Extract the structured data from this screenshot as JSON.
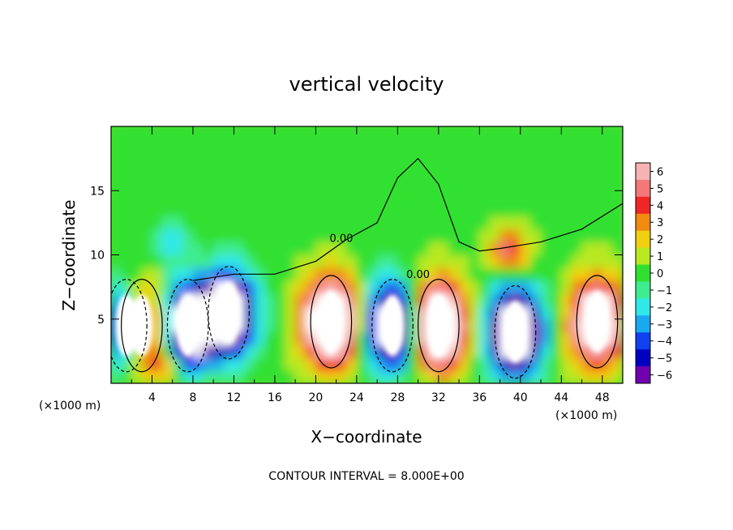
{
  "chart_data": {
    "type": "heatmap",
    "title": "vertical velocity",
    "xlabel": "X−coordinate",
    "ylabel": "Z−coordinate",
    "x_unit_left": "(×1000 m)",
    "x_unit_right": "(×1000 m)",
    "xlim": [
      0,
      50
    ],
    "ylim": [
      0,
      20
    ],
    "x_ticks": [
      4,
      8,
      12,
      16,
      20,
      24,
      28,
      32,
      36,
      40,
      44,
      48
    ],
    "x_tick_labels": [
      "4",
      "8",
      "12",
      "16",
      "20",
      "24",
      "28",
      "32",
      "36",
      "40",
      "44",
      "48"
    ],
    "y_ticks": [
      5,
      10,
      15
    ],
    "y_tick_labels": [
      "5",
      "10",
      "15"
    ],
    "contour_interval_text": "CONTOUR INTERVAL = 8.000E+00",
    "contour_labels": [
      {
        "text": "0.00",
        "x": 22.5,
        "y": 11.0
      },
      {
        "text": "0.00",
        "x": 30.0,
        "y": 8.2
      }
    ],
    "colorbar": {
      "min": -6,
      "max": 6,
      "tick_values": [
        6,
        5,
        4,
        3,
        2,
        1,
        0,
        -1,
        -2,
        -3,
        -4,
        -5,
        -6
      ],
      "tick_labels": [
        "6",
        "5",
        "4",
        "3",
        "2",
        "1",
        "0",
        "−1",
        "−2",
        "−3",
        "−4",
        "−5",
        "−6"
      ],
      "colors": [
        "#f7b3b3",
        "#f47878",
        "#f02525",
        "#f08a10",
        "#f0d010",
        "#b8e820",
        "#30e030",
        "#40ec90",
        "#30e8e8",
        "#1aa8f0",
        "#1040f0",
        "#0000c0",
        "#7000b0"
      ]
    },
    "background_value": 0.2,
    "updrafts": [
      {
        "x": 3.0,
        "z": 4.5,
        "value": 10
      },
      {
        "x": 21.5,
        "z": 4.8,
        "value": 12
      },
      {
        "x": 32.0,
        "z": 4.5,
        "value": 12
      },
      {
        "x": 47.5,
        "z": 4.8,
        "value": 10
      },
      {
        "x": 39.0,
        "z": 10.2,
        "value": 5
      },
      {
        "x": 5.0,
        "z": 1.5,
        "value": 3
      }
    ],
    "downdrafts": [
      {
        "x": 1.5,
        "z": 4.5,
        "value": -10
      },
      {
        "x": 7.5,
        "z": 4.5,
        "value": -10
      },
      {
        "x": 11.5,
        "z": 5.5,
        "value": -10
      },
      {
        "x": 27.5,
        "z": 4.5,
        "value": -10
      },
      {
        "x": 39.5,
        "z": 4.0,
        "value": -12
      },
      {
        "x": 6.0,
        "z": 11.0,
        "value": -2
      }
    ]
  }
}
